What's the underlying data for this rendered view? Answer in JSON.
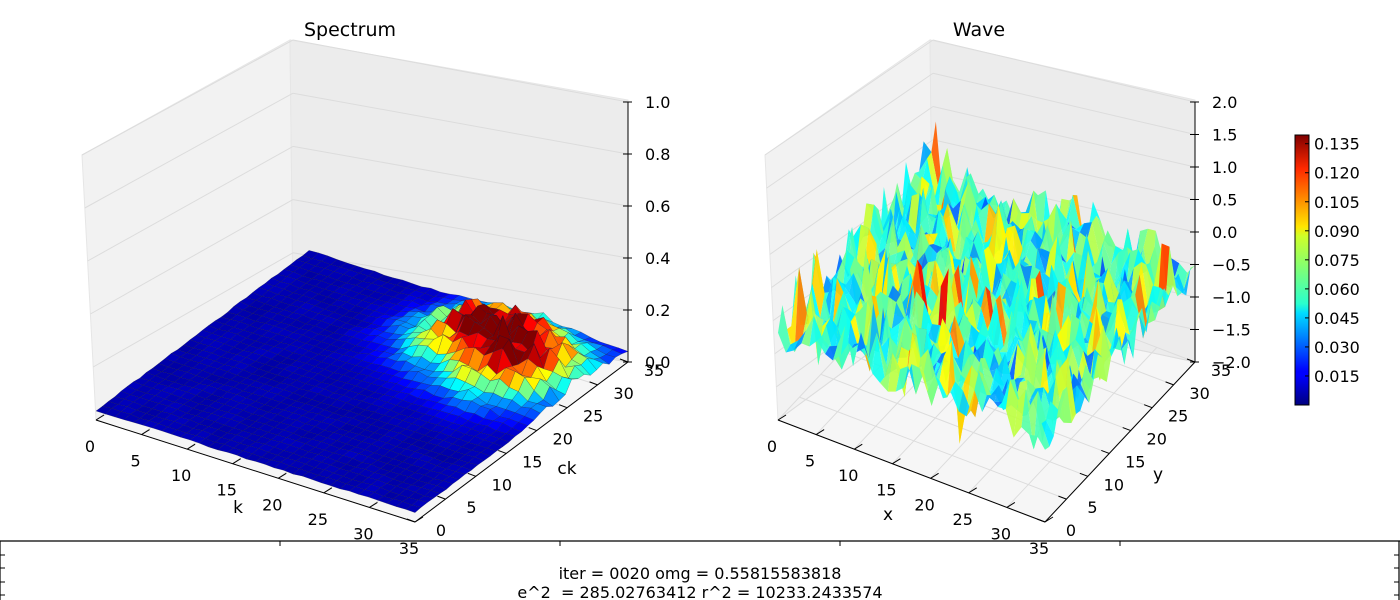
{
  "chart_data": [
    {
      "type": "surface3d",
      "title": "Spectrum",
      "xlabel": "k",
      "ylabel": "ck",
      "x_ticks": [
        "0",
        "5",
        "10",
        "15",
        "20",
        "25",
        "30",
        "35"
      ],
      "y_ticks": [
        "0",
        "5",
        "10",
        "15",
        "20",
        "25",
        "30",
        "35"
      ],
      "z_ticks": [
        "0.0",
        "0.2",
        "0.4",
        "0.6",
        "0.8",
        "1.0"
      ],
      "xlim": [
        0,
        35
      ],
      "ylim": [
        0,
        35
      ],
      "zlim": [
        0,
        1
      ],
      "grid": true,
      "colormap": "jet",
      "peaks": [
        {
          "k": 30,
          "ck": 27,
          "z": 0.09
        },
        {
          "k": 24,
          "ck": 30,
          "z": 0.07
        },
        {
          "k": 21,
          "ck": 28,
          "z": 0.06
        },
        {
          "k": 28,
          "ck": 24,
          "z": 0.05
        }
      ]
    },
    {
      "type": "surface3d",
      "title": "Wave",
      "xlabel": "x",
      "ylabel": "y",
      "x_ticks": [
        "0",
        "5",
        "10",
        "15",
        "20",
        "25",
        "30",
        "35"
      ],
      "y_ticks": [
        "0",
        "5",
        "10",
        "15",
        "20",
        "25",
        "30",
        "35"
      ],
      "z_ticks": [
        "−2.0",
        "−1.5",
        "−1.0",
        "−0.5",
        "0.0",
        "0.5",
        "1.0",
        "1.5",
        "2.0"
      ],
      "xlim": [
        0,
        35
      ],
      "ylim": [
        0,
        35
      ],
      "zlim": [
        -2,
        2
      ],
      "grid": true,
      "colormap": "jet"
    }
  ],
  "colorbar": {
    "ticks": [
      "0.015",
      "0.030",
      "0.045",
      "0.060",
      "0.075",
      "0.090",
      "0.105",
      "0.120",
      "0.135"
    ],
    "min": 0.0,
    "max": 0.1395,
    "colormap": "jet"
  },
  "status": {
    "line1": "iter = 0020 omg = 0.55815583818",
    "line2": "e^2  = 285.02763412 r^2 = 10233.2433574"
  }
}
